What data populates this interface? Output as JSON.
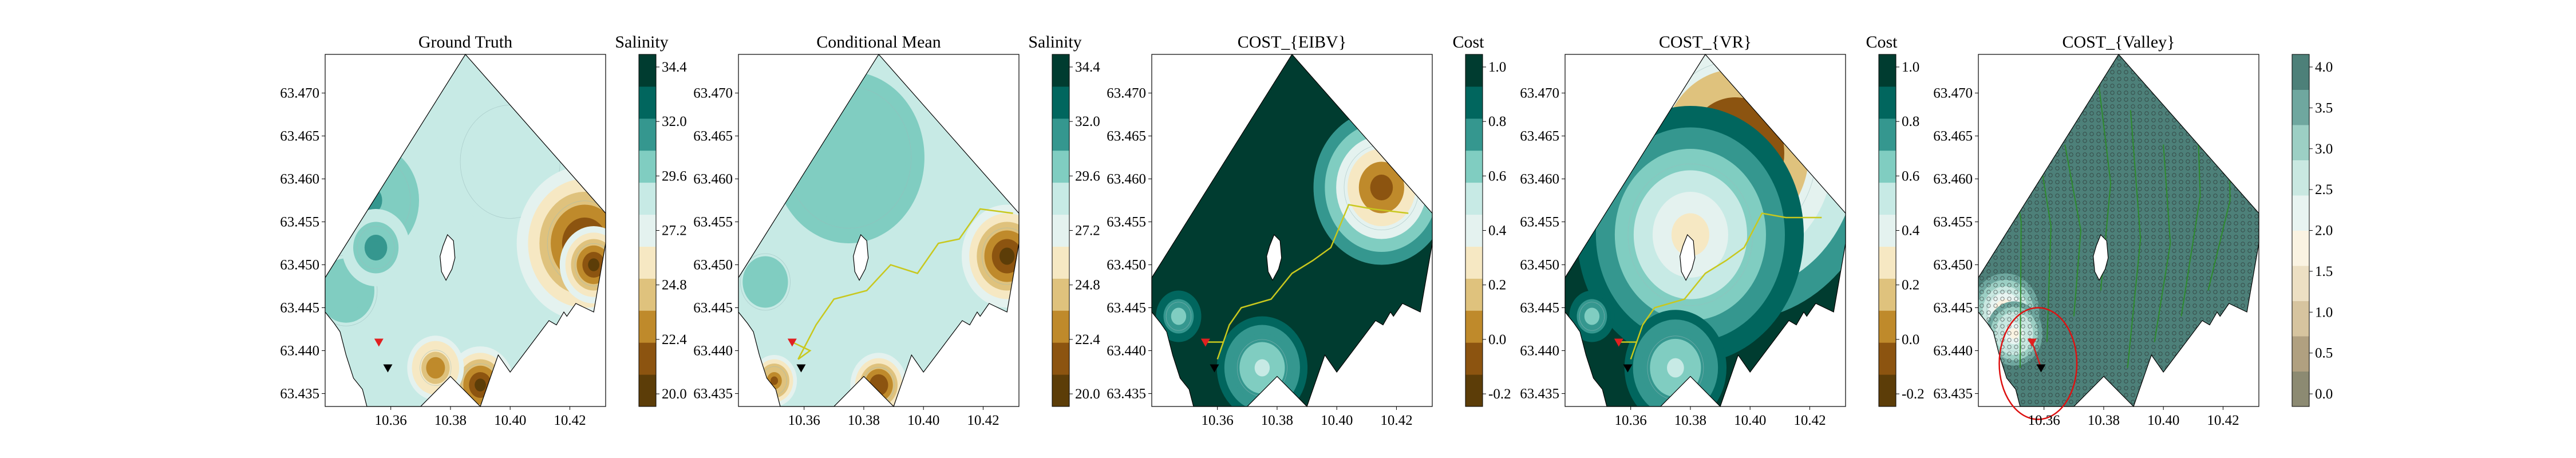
{
  "shared": {
    "x_ticks": [
      "10.36",
      "10.38",
      "10.40",
      "10.42"
    ],
    "y_ticks": [
      "63.470",
      "63.465",
      "63.460",
      "63.455",
      "63.450",
      "63.445",
      "63.440",
      "63.435"
    ]
  },
  "panels": [
    {
      "title": "Ground Truth",
      "colorbar_label": "Salinity",
      "colorbar_ticks": [
        "34.4",
        "32.0",
        "29.6",
        "27.2",
        "24.8",
        "22.4",
        "20.0"
      ],
      "palette": [
        "#5c3d08",
        "#8c5410",
        "#bf8a2b",
        "#dfc27d",
        "#f6e8c3",
        "#e4f2ef",
        "#c7eae5",
        "#80cdc1",
        "#35978f",
        "#01665e",
        "#003c30"
      ],
      "background_level": 0.55,
      "blobs": [
        {
          "lon": 10.353,
          "lat": 63.4575,
          "r": 0.013,
          "level": 0.75
        },
        {
          "lon": 10.345,
          "lat": 63.447,
          "r": 0.01,
          "level": 0.7
        },
        {
          "lon": 10.355,
          "lat": 63.452,
          "r": 0.006,
          "level": 0.8
        },
        {
          "lon": 10.4,
          "lat": 63.462,
          "r": 0.016,
          "level": 0.62
        },
        {
          "lon": 10.425,
          "lat": 63.4525,
          "r": 0.012,
          "level": 0.05
        },
        {
          "lon": 10.428,
          "lat": 63.45,
          "r": 0.006,
          "level": 0.0
        },
        {
          "lon": 10.39,
          "lat": 63.436,
          "r": 0.006,
          "level": 0.08
        },
        {
          "lon": 10.375,
          "lat": 63.438,
          "r": 0.005,
          "level": 0.2
        }
      ],
      "path": [],
      "start": [
        10.356,
        63.441
      ],
      "end": [
        10.359,
        63.438
      ]
    },
    {
      "title": "Conditional Mean",
      "colorbar_label": "Salinity",
      "colorbar_ticks": [
        "34.4",
        "32.0",
        "29.6",
        "27.2",
        "24.8",
        "22.4",
        "20.0"
      ],
      "palette": [
        "#5c3d08",
        "#8c5410",
        "#bf8a2b",
        "#dfc27d",
        "#f6e8c3",
        "#e4f2ef",
        "#c7eae5",
        "#80cdc1",
        "#35978f",
        "#01665e",
        "#003c30"
      ],
      "background_level": 0.56,
      "blobs": [
        {
          "lon": 10.375,
          "lat": 63.4625,
          "r": 0.02,
          "level": 0.72
        },
        {
          "lon": 10.347,
          "lat": 63.448,
          "r": 0.008,
          "level": 0.7
        },
        {
          "lon": 10.428,
          "lat": 63.451,
          "r": 0.008,
          "level": 0.05
        },
        {
          "lon": 10.385,
          "lat": 63.436,
          "r": 0.005,
          "level": 0.1
        },
        {
          "lon": 10.35,
          "lat": 63.4365,
          "r": 0.004,
          "level": 0.15
        }
      ],
      "path": [
        [
          10.356,
          63.441
        ],
        [
          10.362,
          63.44
        ],
        [
          10.358,
          63.439
        ],
        [
          10.364,
          63.443
        ],
        [
          10.37,
          63.446
        ],
        [
          10.381,
          63.447
        ],
        [
          10.389,
          63.45
        ],
        [
          10.398,
          63.449
        ],
        [
          10.405,
          63.4525
        ],
        [
          10.412,
          63.453
        ],
        [
          10.419,
          63.4565
        ],
        [
          10.43,
          63.456
        ]
      ],
      "start": [
        10.356,
        63.441
      ],
      "end": [
        10.359,
        63.438
      ]
    },
    {
      "title": "COST_{EIBV}",
      "colorbar_label": "Cost",
      "colorbar_ticks": [
        "1.0",
        "0.8",
        "0.6",
        "0.4",
        "0.2",
        "0.0",
        "-0.2"
      ],
      "palette": [
        "#5c3d08",
        "#8c5410",
        "#bf8a2b",
        "#dfc27d",
        "#f6e8c3",
        "#e4f2ef",
        "#c7eae5",
        "#80cdc1",
        "#35978f",
        "#01665e",
        "#003c30"
      ],
      "background_level": 0.92,
      "blobs": [
        {
          "lon": 10.415,
          "lat": 63.459,
          "r": 0.012,
          "level": 0.1
        },
        {
          "lon": 10.375,
          "lat": 63.438,
          "r": 0.008,
          "level": 0.6
        },
        {
          "lon": 10.347,
          "lat": 63.444,
          "r": 0.004,
          "level": 0.65
        }
      ],
      "path": [
        [
          10.356,
          63.441
        ],
        [
          10.362,
          63.441
        ],
        [
          10.36,
          63.439
        ],
        [
          10.364,
          63.443
        ],
        [
          10.368,
          63.445
        ],
        [
          10.378,
          63.446
        ],
        [
          10.385,
          63.449
        ],
        [
          10.392,
          63.4505
        ],
        [
          10.398,
          63.452
        ],
        [
          10.404,
          63.457
        ],
        [
          10.412,
          63.4565
        ],
        [
          10.424,
          63.456
        ]
      ],
      "start": [
        10.356,
        63.441
      ],
      "end": [
        10.359,
        63.438
      ]
    },
    {
      "title": "COST_{VR}",
      "colorbar_label": "Cost",
      "colorbar_ticks": [
        "1.0",
        "0.8",
        "0.6",
        "0.4",
        "0.2",
        "0.0",
        "-0.2"
      ],
      "palette": [
        "#5c3d08",
        "#8c5410",
        "#bf8a2b",
        "#dfc27d",
        "#f6e8c3",
        "#e4f2ef",
        "#c7eae5",
        "#80cdc1",
        "#35978f",
        "#01665e",
        "#003c30"
      ],
      "background_level": 0.92,
      "blobs": [
        {
          "lon": 10.395,
          "lat": 63.463,
          "r": 0.026,
          "level": 0.02
        },
        {
          "lon": 10.38,
          "lat": 63.4535,
          "r": 0.02,
          "level": 0.45
        },
        {
          "lon": 10.375,
          "lat": 63.438,
          "r": 0.009,
          "level": 0.6
        },
        {
          "lon": 10.347,
          "lat": 63.444,
          "r": 0.004,
          "level": 0.65
        }
      ],
      "path": [
        [
          10.356,
          63.441
        ],
        [
          10.362,
          63.441
        ],
        [
          10.36,
          63.439
        ],
        [
          10.364,
          63.443
        ],
        [
          10.368,
          63.445
        ],
        [
          10.378,
          63.446
        ],
        [
          10.385,
          63.449
        ],
        [
          10.392,
          63.4505
        ],
        [
          10.398,
          63.452
        ],
        [
          10.404,
          63.456
        ],
        [
          10.412,
          63.4555
        ],
        [
          10.424,
          63.4555
        ]
      ],
      "start": [
        10.356,
        63.441
      ],
      "end": [
        10.359,
        63.438
      ]
    },
    {
      "title": "COST_{Valley}",
      "colorbar_label": "",
      "colorbar_ticks": [
        "4.0",
        "3.5",
        "3.0",
        "2.5",
        "2.0",
        "1.5",
        "1.0",
        "0.5",
        "0.0"
      ],
      "palette": [
        "#8c8a72",
        "#b0a080",
        "#d6c49f",
        "#ecdfc3",
        "#faf3e2",
        "#e8f4f1",
        "#c9e8e1",
        "#9ccfc4",
        "#6fa79f",
        "#4d8079"
      ],
      "background_level": 0.9,
      "blobs": [
        {
          "lon": 10.347,
          "lat": 63.4445,
          "r": 0.006,
          "level": 0.35
        },
        {
          "lon": 10.35,
          "lat": 63.442,
          "r": 0.005,
          "level": 0.45
        }
      ],
      "path": [
        [
          10.356,
          63.441
        ],
        [
          10.359,
          63.438
        ]
      ],
      "start": [
        10.356,
        63.441
      ],
      "end": [
        10.359,
        63.438
      ],
      "circle": {
        "lon": 10.358,
        "lat": 63.4385,
        "r_lon": 0.013,
        "r_lat": 0.0065
      }
    }
  ]
}
